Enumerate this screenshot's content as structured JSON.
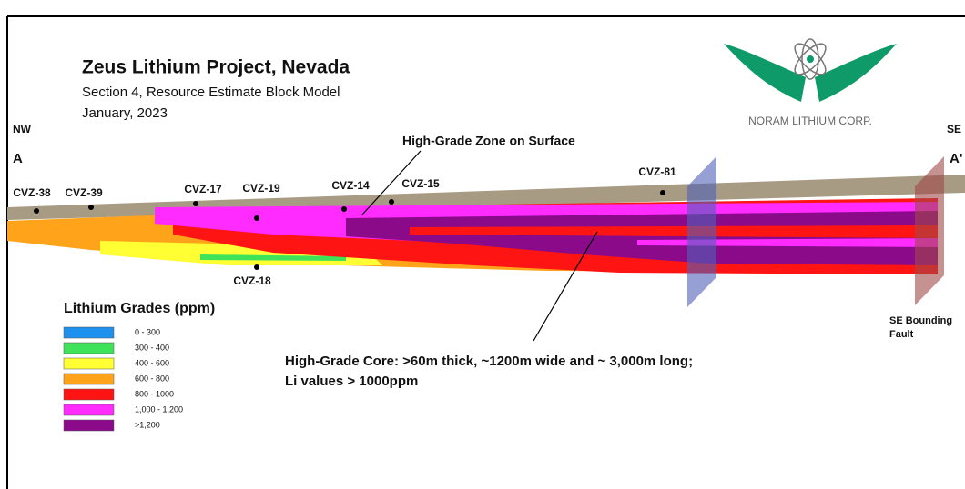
{
  "header": {
    "title": "Zeus Lithium Project, Nevada",
    "subtitle": "Section 4, Resource Estimate Block Model",
    "date": "January, 2023",
    "logo_text": "NORAM LITHIUM CORP."
  },
  "section": {
    "left_direction": "NW",
    "right_direction": "SE",
    "left_point": "A",
    "right_point": "A'"
  },
  "drill_holes": [
    "CVZ-38",
    "CVZ-39",
    "CVZ-17",
    "CVZ-19",
    "CVZ-14",
    "CVZ-15",
    "CVZ-81",
    "CVZ-18"
  ],
  "annotations": {
    "surface_zone": "High-Grade Zone on Surface",
    "core_line1": "High-Grade Core: >60m thick, ~1200m wide and ~ 3,000m long;",
    "core_line2": "Li values > 1000ppm",
    "fault_line1": "SE Bounding",
    "fault_line2": "Fault"
  },
  "legend": {
    "title": "Lithium Grades (ppm)",
    "items": [
      {
        "label": "0 - 300",
        "color": "#1e90ee"
      },
      {
        "label": "300 - 400",
        "color": "#3ee35a"
      },
      {
        "label": "400 - 600",
        "color": "#ffff33"
      },
      {
        "label": "600 - 800",
        "color": "#ffa41a"
      },
      {
        "label": "800 - 1000",
        "color": "#ff1414"
      },
      {
        "label": "1,000 - 1,200",
        "color": "#ff2bff"
      },
      {
        "label": ">1,200",
        "color": "#8a0a8a"
      }
    ]
  }
}
